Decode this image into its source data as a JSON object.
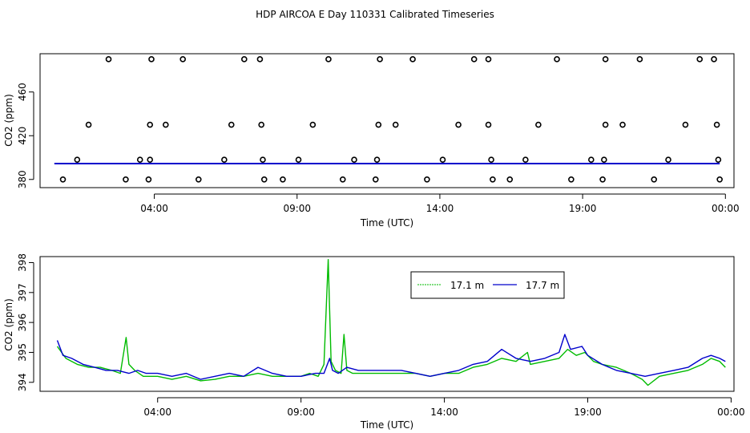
{
  "title": "HDP AIRCOA E  Day 110331  Calibrated Timeseries",
  "colors": {
    "series_17_1": "#00bb00",
    "series_17_7": "#0000cc",
    "markers": "#000000"
  },
  "chart_data": [
    {
      "type": "scatter",
      "xlabel": "Time (UTC)",
      "ylabel": "CO2 (ppm)",
      "xlim": [
        0.0,
        24.3
      ],
      "ylim": [
        372.5,
        495
      ],
      "x_ticks": [
        4,
        9,
        14,
        19,
        24
      ],
      "x_tick_labels": [
        "04:00",
        "09:00",
        "14:00",
        "19:00",
        "00:00"
      ],
      "y_ticks": [
        380,
        420,
        460
      ],
      "y_tick_labels": [
        "380",
        "420",
        "460"
      ],
      "marker_levels": [
        380,
        398,
        430,
        490
      ],
      "markers": [
        {
          "x": 2.4,
          "y": 490
        },
        {
          "x": 3.9,
          "y": 490
        },
        {
          "x": 5.0,
          "y": 490
        },
        {
          "x": 7.15,
          "y": 490
        },
        {
          "x": 7.7,
          "y": 490
        },
        {
          "x": 10.1,
          "y": 490
        },
        {
          "x": 11.9,
          "y": 490
        },
        {
          "x": 13.05,
          "y": 490
        },
        {
          "x": 15.2,
          "y": 490
        },
        {
          "x": 15.7,
          "y": 490
        },
        {
          "x": 18.1,
          "y": 490
        },
        {
          "x": 19.8,
          "y": 490
        },
        {
          "x": 21.0,
          "y": 490
        },
        {
          "x": 23.1,
          "y": 490
        },
        {
          "x": 23.6,
          "y": 490
        },
        {
          "x": 1.7,
          "y": 430
        },
        {
          "x": 3.85,
          "y": 430
        },
        {
          "x": 4.4,
          "y": 430
        },
        {
          "x": 6.7,
          "y": 430
        },
        {
          "x": 7.75,
          "y": 430
        },
        {
          "x": 9.55,
          "y": 430
        },
        {
          "x": 11.85,
          "y": 430
        },
        {
          "x": 12.45,
          "y": 430
        },
        {
          "x": 14.65,
          "y": 430
        },
        {
          "x": 15.7,
          "y": 430
        },
        {
          "x": 17.45,
          "y": 430
        },
        {
          "x": 19.8,
          "y": 430
        },
        {
          "x": 20.4,
          "y": 430
        },
        {
          "x": 22.6,
          "y": 430
        },
        {
          "x": 23.7,
          "y": 430
        },
        {
          "x": 1.3,
          "y": 398
        },
        {
          "x": 3.5,
          "y": 398
        },
        {
          "x": 3.85,
          "y": 398
        },
        {
          "x": 6.45,
          "y": 398
        },
        {
          "x": 7.8,
          "y": 398
        },
        {
          "x": 9.05,
          "y": 398
        },
        {
          "x": 11.0,
          "y": 398
        },
        {
          "x": 11.8,
          "y": 398
        },
        {
          "x": 14.1,
          "y": 398
        },
        {
          "x": 15.8,
          "y": 398
        },
        {
          "x": 17.0,
          "y": 398
        },
        {
          "x": 19.3,
          "y": 398
        },
        {
          "x": 19.75,
          "y": 398
        },
        {
          "x": 22.0,
          "y": 398
        },
        {
          "x": 23.75,
          "y": 398
        },
        {
          "x": 0.8,
          "y": 380
        },
        {
          "x": 3.0,
          "y": 380
        },
        {
          "x": 3.8,
          "y": 380
        },
        {
          "x": 5.55,
          "y": 380
        },
        {
          "x": 7.85,
          "y": 380
        },
        {
          "x": 8.5,
          "y": 380
        },
        {
          "x": 10.6,
          "y": 380
        },
        {
          "x": 11.75,
          "y": 380
        },
        {
          "x": 13.55,
          "y": 380
        },
        {
          "x": 15.85,
          "y": 380
        },
        {
          "x": 16.45,
          "y": 380
        },
        {
          "x": 18.6,
          "y": 380
        },
        {
          "x": 19.7,
          "y": 380
        },
        {
          "x": 21.5,
          "y": 380
        },
        {
          "x": 23.8,
          "y": 380
        }
      ],
      "series_baseline": 394.5
    },
    {
      "type": "line",
      "xlabel": "Time (UTC)",
      "ylabel": "CO2 (ppm)",
      "xlim": [
        -0.1,
        24.1
      ],
      "ylim": [
        393.7,
        398.2
      ],
      "x_ticks": [
        4,
        9,
        14,
        19,
        24
      ],
      "x_tick_labels": [
        "04:00",
        "09:00",
        "14:00",
        "19:00",
        "00:00"
      ],
      "y_ticks": [
        394,
        395,
        396,
        397,
        398
      ],
      "y_tick_labels": [
        "394",
        "395",
        "396",
        "397",
        "398"
      ],
      "legend": {
        "position": "top-center",
        "entries": [
          "17.1 m",
          "17.7 m"
        ]
      },
      "series": [
        {
          "name": "17.1 m",
          "color": "#00bb00",
          "points": [
            [
              0.5,
              395.2
            ],
            [
              0.8,
              394.8
            ],
            [
              1.2,
              394.6
            ],
            [
              1.6,
              394.5
            ],
            [
              2.0,
              394.5
            ],
            [
              2.4,
              394.4
            ],
            [
              2.7,
              394.3
            ],
            [
              2.9,
              395.5
            ],
            [
              3.0,
              394.6
            ],
            [
              3.2,
              394.4
            ],
            [
              3.5,
              394.2
            ],
            [
              4.0,
              394.2
            ],
            [
              4.5,
              394.1
            ],
            [
              5.0,
              394.2
            ],
            [
              5.5,
              394.05
            ],
            [
              6.0,
              394.1
            ],
            [
              6.5,
              394.2
            ],
            [
              7.0,
              394.2
            ],
            [
              7.5,
              394.3
            ],
            [
              8.0,
              394.2
            ],
            [
              8.5,
              394.2
            ],
            [
              9.0,
              394.2
            ],
            [
              9.3,
              394.3
            ],
            [
              9.6,
              394.2
            ],
            [
              9.8,
              394.6
            ],
            [
              9.95,
              398.1
            ],
            [
              10.05,
              394.7
            ],
            [
              10.2,
              394.4
            ],
            [
              10.4,
              394.3
            ],
            [
              10.5,
              395.6
            ],
            [
              10.6,
              394.4
            ],
            [
              10.8,
              394.3
            ],
            [
              11.0,
              394.3
            ],
            [
              11.5,
              394.3
            ],
            [
              12.0,
              394.3
            ],
            [
              12.5,
              394.3
            ],
            [
              13.0,
              394.3
            ],
            [
              13.5,
              394.2
            ],
            [
              14.0,
              394.3
            ],
            [
              14.5,
              394.3
            ],
            [
              15.0,
              394.5
            ],
            [
              15.5,
              394.6
            ],
            [
              16.0,
              394.8
            ],
            [
              16.5,
              394.7
            ],
            [
              16.9,
              395.0
            ],
            [
              17.0,
              394.6
            ],
            [
              17.5,
              394.7
            ],
            [
              18.0,
              394.8
            ],
            [
              18.3,
              395.1
            ],
            [
              18.6,
              394.9
            ],
            [
              18.9,
              395.0
            ],
            [
              19.2,
              394.7
            ],
            [
              19.5,
              394.6
            ],
            [
              20.0,
              394.5
            ],
            [
              20.5,
              394.3
            ],
            [
              20.9,
              394.1
            ],
            [
              21.1,
              393.9
            ],
            [
              21.5,
              394.2
            ],
            [
              22.0,
              394.3
            ],
            [
              22.5,
              394.4
            ],
            [
              23.0,
              394.6
            ],
            [
              23.3,
              394.8
            ],
            [
              23.6,
              394.7
            ],
            [
              23.8,
              394.5
            ]
          ]
        },
        {
          "name": "17.7 m",
          "color": "#0000cc",
          "points": [
            [
              0.5,
              395.4
            ],
            [
              0.7,
              394.9
            ],
            [
              1.0,
              394.8
            ],
            [
              1.4,
              394.6
            ],
            [
              1.8,
              394.5
            ],
            [
              2.2,
              394.4
            ],
            [
              2.6,
              394.4
            ],
            [
              3.0,
              394.3
            ],
            [
              3.3,
              394.4
            ],
            [
              3.6,
              394.3
            ],
            [
              4.0,
              394.3
            ],
            [
              4.5,
              394.2
            ],
            [
              5.0,
              394.3
            ],
            [
              5.5,
              394.1
            ],
            [
              6.0,
              394.2
            ],
            [
              6.5,
              394.3
            ],
            [
              7.0,
              394.2
            ],
            [
              7.5,
              394.5
            ],
            [
              8.0,
              394.3
            ],
            [
              8.5,
              394.2
            ],
            [
              9.0,
              394.2
            ],
            [
              9.5,
              394.3
            ],
            [
              9.8,
              394.3
            ],
            [
              10.0,
              394.8
            ],
            [
              10.1,
              394.4
            ],
            [
              10.3,
              394.3
            ],
            [
              10.6,
              394.5
            ],
            [
              11.0,
              394.4
            ],
            [
              11.5,
              394.4
            ],
            [
              12.0,
              394.4
            ],
            [
              12.5,
              394.4
            ],
            [
              13.0,
              394.3
            ],
            [
              13.5,
              394.2
            ],
            [
              14.0,
              394.3
            ],
            [
              14.5,
              394.4
            ],
            [
              15.0,
              394.6
            ],
            [
              15.5,
              394.7
            ],
            [
              16.0,
              395.1
            ],
            [
              16.5,
              394.8
            ],
            [
              17.0,
              394.7
            ],
            [
              17.5,
              394.8
            ],
            [
              18.0,
              395.0
            ],
            [
              18.2,
              395.6
            ],
            [
              18.4,
              395.1
            ],
            [
              18.8,
              395.2
            ],
            [
              19.0,
              394.9
            ],
            [
              19.5,
              394.6
            ],
            [
              20.0,
              394.4
            ],
            [
              20.5,
              394.3
            ],
            [
              21.0,
              394.2
            ],
            [
              21.5,
              394.3
            ],
            [
              22.0,
              394.4
            ],
            [
              22.5,
              394.5
            ],
            [
              23.0,
              394.8
            ],
            [
              23.3,
              394.9
            ],
            [
              23.6,
              394.8
            ],
            [
              23.8,
              394.7
            ]
          ]
        }
      ]
    }
  ]
}
